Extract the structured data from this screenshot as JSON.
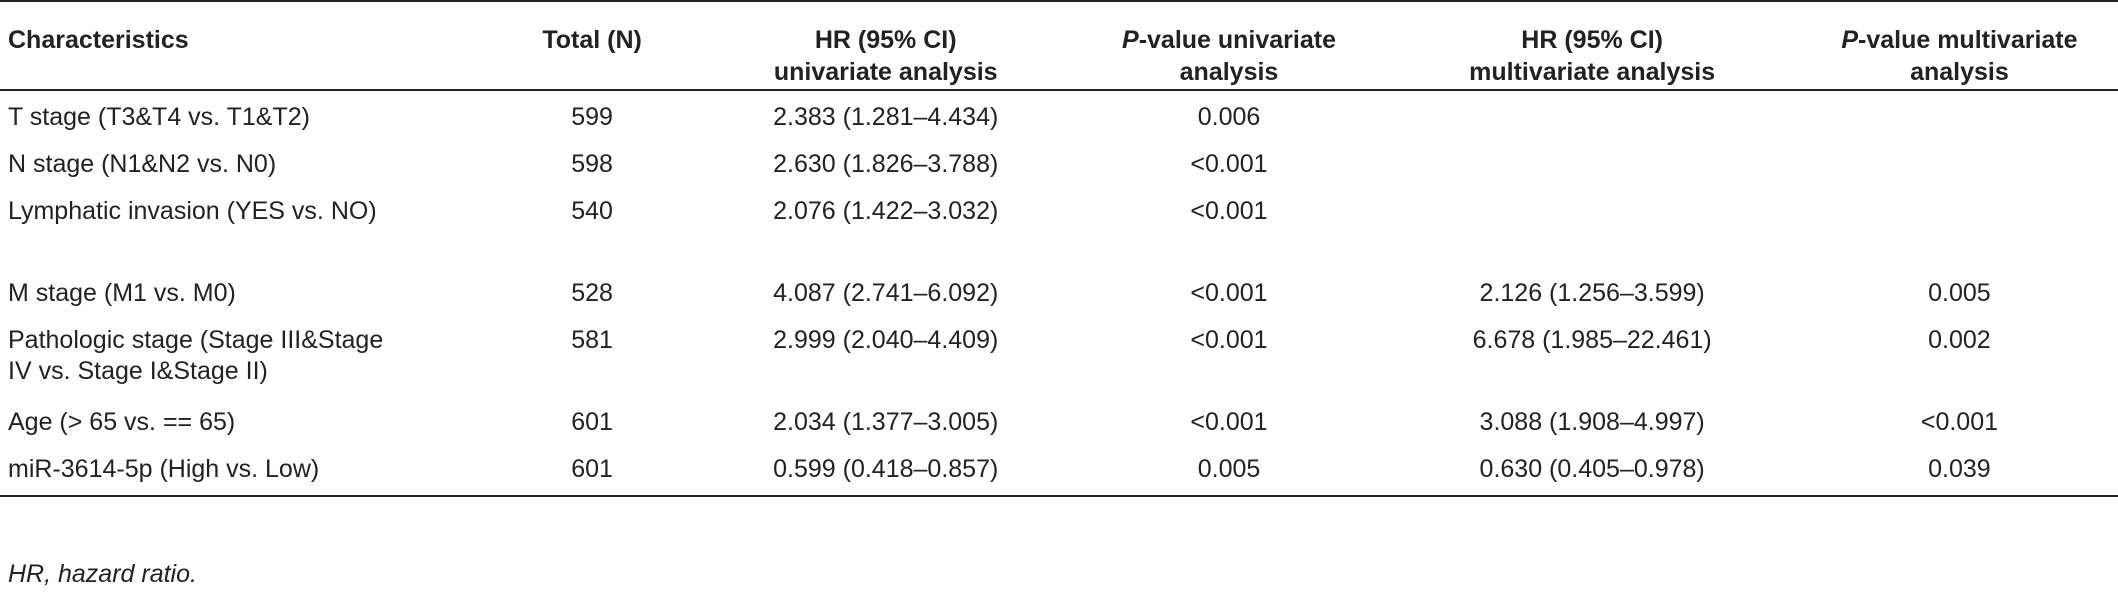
{
  "headers": {
    "characteristics": "Characteristics",
    "total": "Total (N)",
    "hr_uni_line1": "HR (95% CI)",
    "hr_uni_line2": "univariate analysis",
    "p_uni_italic": "P",
    "p_uni_rest": "-value univariate",
    "p_uni_line2": "analysis",
    "hr_multi_line1": "HR (95% CI)",
    "hr_multi_line2": "multivariate analysis",
    "p_multi_italic": "P",
    "p_multi_rest": "-value multivariate",
    "p_multi_line2": "analysis"
  },
  "rows": [
    {
      "characteristic": "T stage (T3&T4 vs. T1&T2)",
      "total": "599",
      "hr_uni": "2.383 (1.281–4.434)",
      "p_uni": "0.006",
      "hr_multi": "",
      "p_multi": ""
    },
    {
      "characteristic": "N stage (N1&N2 vs. N0)",
      "total": "598",
      "hr_uni": "2.630 (1.826–3.788)",
      "p_uni": "<0.001",
      "hr_multi": "",
      "p_multi": ""
    },
    {
      "characteristic": "Lymphatic invasion (YES vs. NO)",
      "total": "540",
      "hr_uni": "2.076 (1.422–3.032)",
      "p_uni": "<0.001",
      "hr_multi": "",
      "p_multi": ""
    },
    {
      "characteristic": "M stage (M1 vs. M0)",
      "total": "528",
      "hr_uni": "4.087 (2.741–6.092)",
      "p_uni": "<0.001",
      "hr_multi": "2.126 (1.256–3.599)",
      "p_multi": "0.005"
    },
    {
      "characteristic": "Pathologic stage (Stage III&Stage IV vs. Stage I&Stage II)",
      "total": "581",
      "hr_uni": "2.999 (2.040–4.409)",
      "p_uni": "<0.001",
      "hr_multi": "6.678 (1.985–22.461)",
      "p_multi": "0.002"
    },
    {
      "characteristic": "Age (> 65 vs. == 65)",
      "total": "601",
      "hr_uni": "2.034 (1.377–3.005)",
      "p_uni": "<0.001",
      "hr_multi": "3.088 (1.908–4.997)",
      "p_multi": "<0.001"
    },
    {
      "characteristic": "miR-3614-5p (High vs. Low)",
      "total": "601",
      "hr_uni": "0.599 (0.418–0.857)",
      "p_uni": "0.005",
      "hr_multi": "0.630 (0.405–0.978)",
      "p_multi": "0.039"
    }
  ],
  "footnote": "HR, hazard ratio."
}
